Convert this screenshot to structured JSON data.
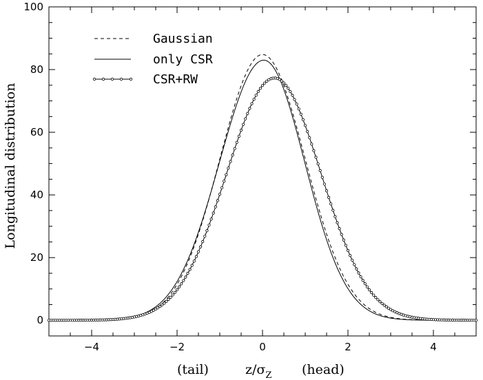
{
  "chart_data": {
    "type": "line",
    "ylabel": "Longitudinal distribution",
    "xlabel_parts": {
      "left": "(tail)",
      "var": "z/σ",
      "sub": "Z",
      "right": "(head)"
    },
    "xlim": [
      -5,
      5
    ],
    "ylim": [
      -5,
      100
    ],
    "x_ticks": [
      -4,
      -2,
      0,
      2,
      4
    ],
    "y_ticks": [
      0,
      20,
      40,
      60,
      80,
      100
    ],
    "grid": false,
    "legend_position": "top-left",
    "series": [
      {
        "name": "Gaussian",
        "style": "dashed",
        "peak": 84.8,
        "center": 0.0,
        "sigma_left": 1.0,
        "sigma_right": 1.0
      },
      {
        "name": "only CSR",
        "style": "solid",
        "peak": 83.0,
        "center": 0.03,
        "sigma_left": 1.04,
        "sigma_right": 0.96
      },
      {
        "name": "CSR+RW",
        "style": "solid-circles",
        "peak": 77.3,
        "center": 0.28,
        "sigma_left": 1.12,
        "sigma_right": 1.09
      }
    ]
  }
}
